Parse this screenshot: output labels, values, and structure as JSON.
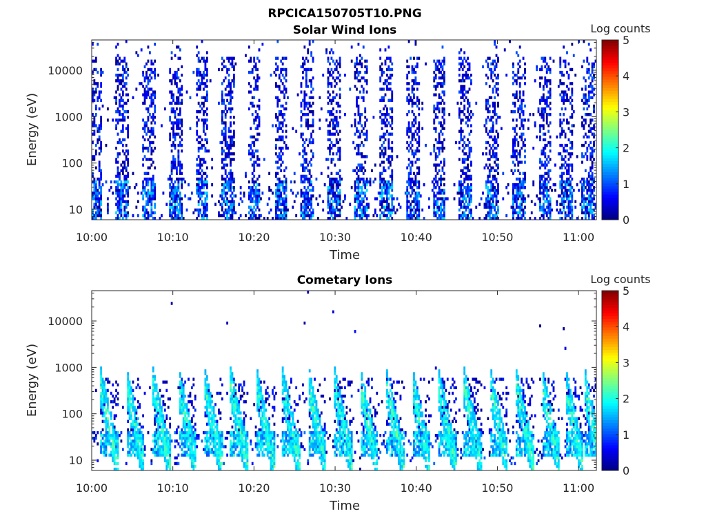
{
  "figure": {
    "title": "RPCICA150705T10.PNG"
  },
  "colormap": {
    "name": "jet",
    "stops": [
      "#00007f",
      "#0000ff",
      "#007fff",
      "#00ffff",
      "#7fff7f",
      "#ffff00",
      "#ff7f00",
      "#ff0000",
      "#7f0000"
    ]
  },
  "chart_data": [
    {
      "type": "heatmap",
      "title": "Solar Wind Ions",
      "xlabel": "Time",
      "ylabel": "Energy (eV)",
      "colorbar_label": "Log counts",
      "x_ticks": [
        "10:00",
        "10:10",
        "10:20",
        "10:30",
        "10:40",
        "10:50",
        "11:00"
      ],
      "y_ticks": [
        "10",
        "100",
        "1000",
        "10000"
      ],
      "y_scale": "log",
      "xlim": [
        "10:00",
        "11:02"
      ],
      "ylim": [
        6,
        45000
      ],
      "clim": [
        0,
        5
      ],
      "colorbar_ticks": [
        "0",
        "1",
        "2",
        "3",
        "4",
        "5"
      ],
      "x_unit": "minutes after 10:00",
      "burst_times": [
        0.5,
        3.8,
        7.0,
        10.3,
        13.6,
        16.8,
        20.0,
        23.3,
        26.6,
        29.8,
        33.1,
        36.3,
        39.6,
        42.8,
        46.1,
        49.3,
        52.6,
        55.9,
        58.5,
        61.2
      ],
      "burst_description": "Periodic vertical bursts of 0-1 log counts spanning ~6 eV to ~20000 eV; denser below ~50 eV"
    },
    {
      "type": "heatmap",
      "title": "Cometary Ions",
      "xlabel": "Time",
      "ylabel": "Energy (eV)",
      "colorbar_label": "Log counts",
      "x_ticks": [
        "10:00",
        "10:10",
        "10:20",
        "10:30",
        "10:40",
        "10:50",
        "11:00"
      ],
      "y_ticks": [
        "10",
        "100",
        "1000",
        "10000"
      ],
      "y_scale": "log",
      "xlim": [
        "10:00",
        "11:02"
      ],
      "ylim": [
        6,
        45000
      ],
      "clim": [
        0,
        5
      ],
      "colorbar_ticks": [
        "0",
        "1",
        "2",
        "3",
        "4",
        "5"
      ],
      "x_unit": "minutes after 10:00",
      "burst_times": [
        2.0,
        5.2,
        8.4,
        11.6,
        14.8,
        18.0,
        21.2,
        24.4,
        27.6,
        30.8,
        34.0,
        37.2,
        40.4,
        43.6,
        46.8,
        50.0,
        53.2,
        56.4,
        59.3,
        61.6
      ],
      "burst_description": "Periodic dispersed streaks from ~400 eV down to ~12 eV with peak 1.5-2 log counts around 15-40 eV"
    }
  ]
}
